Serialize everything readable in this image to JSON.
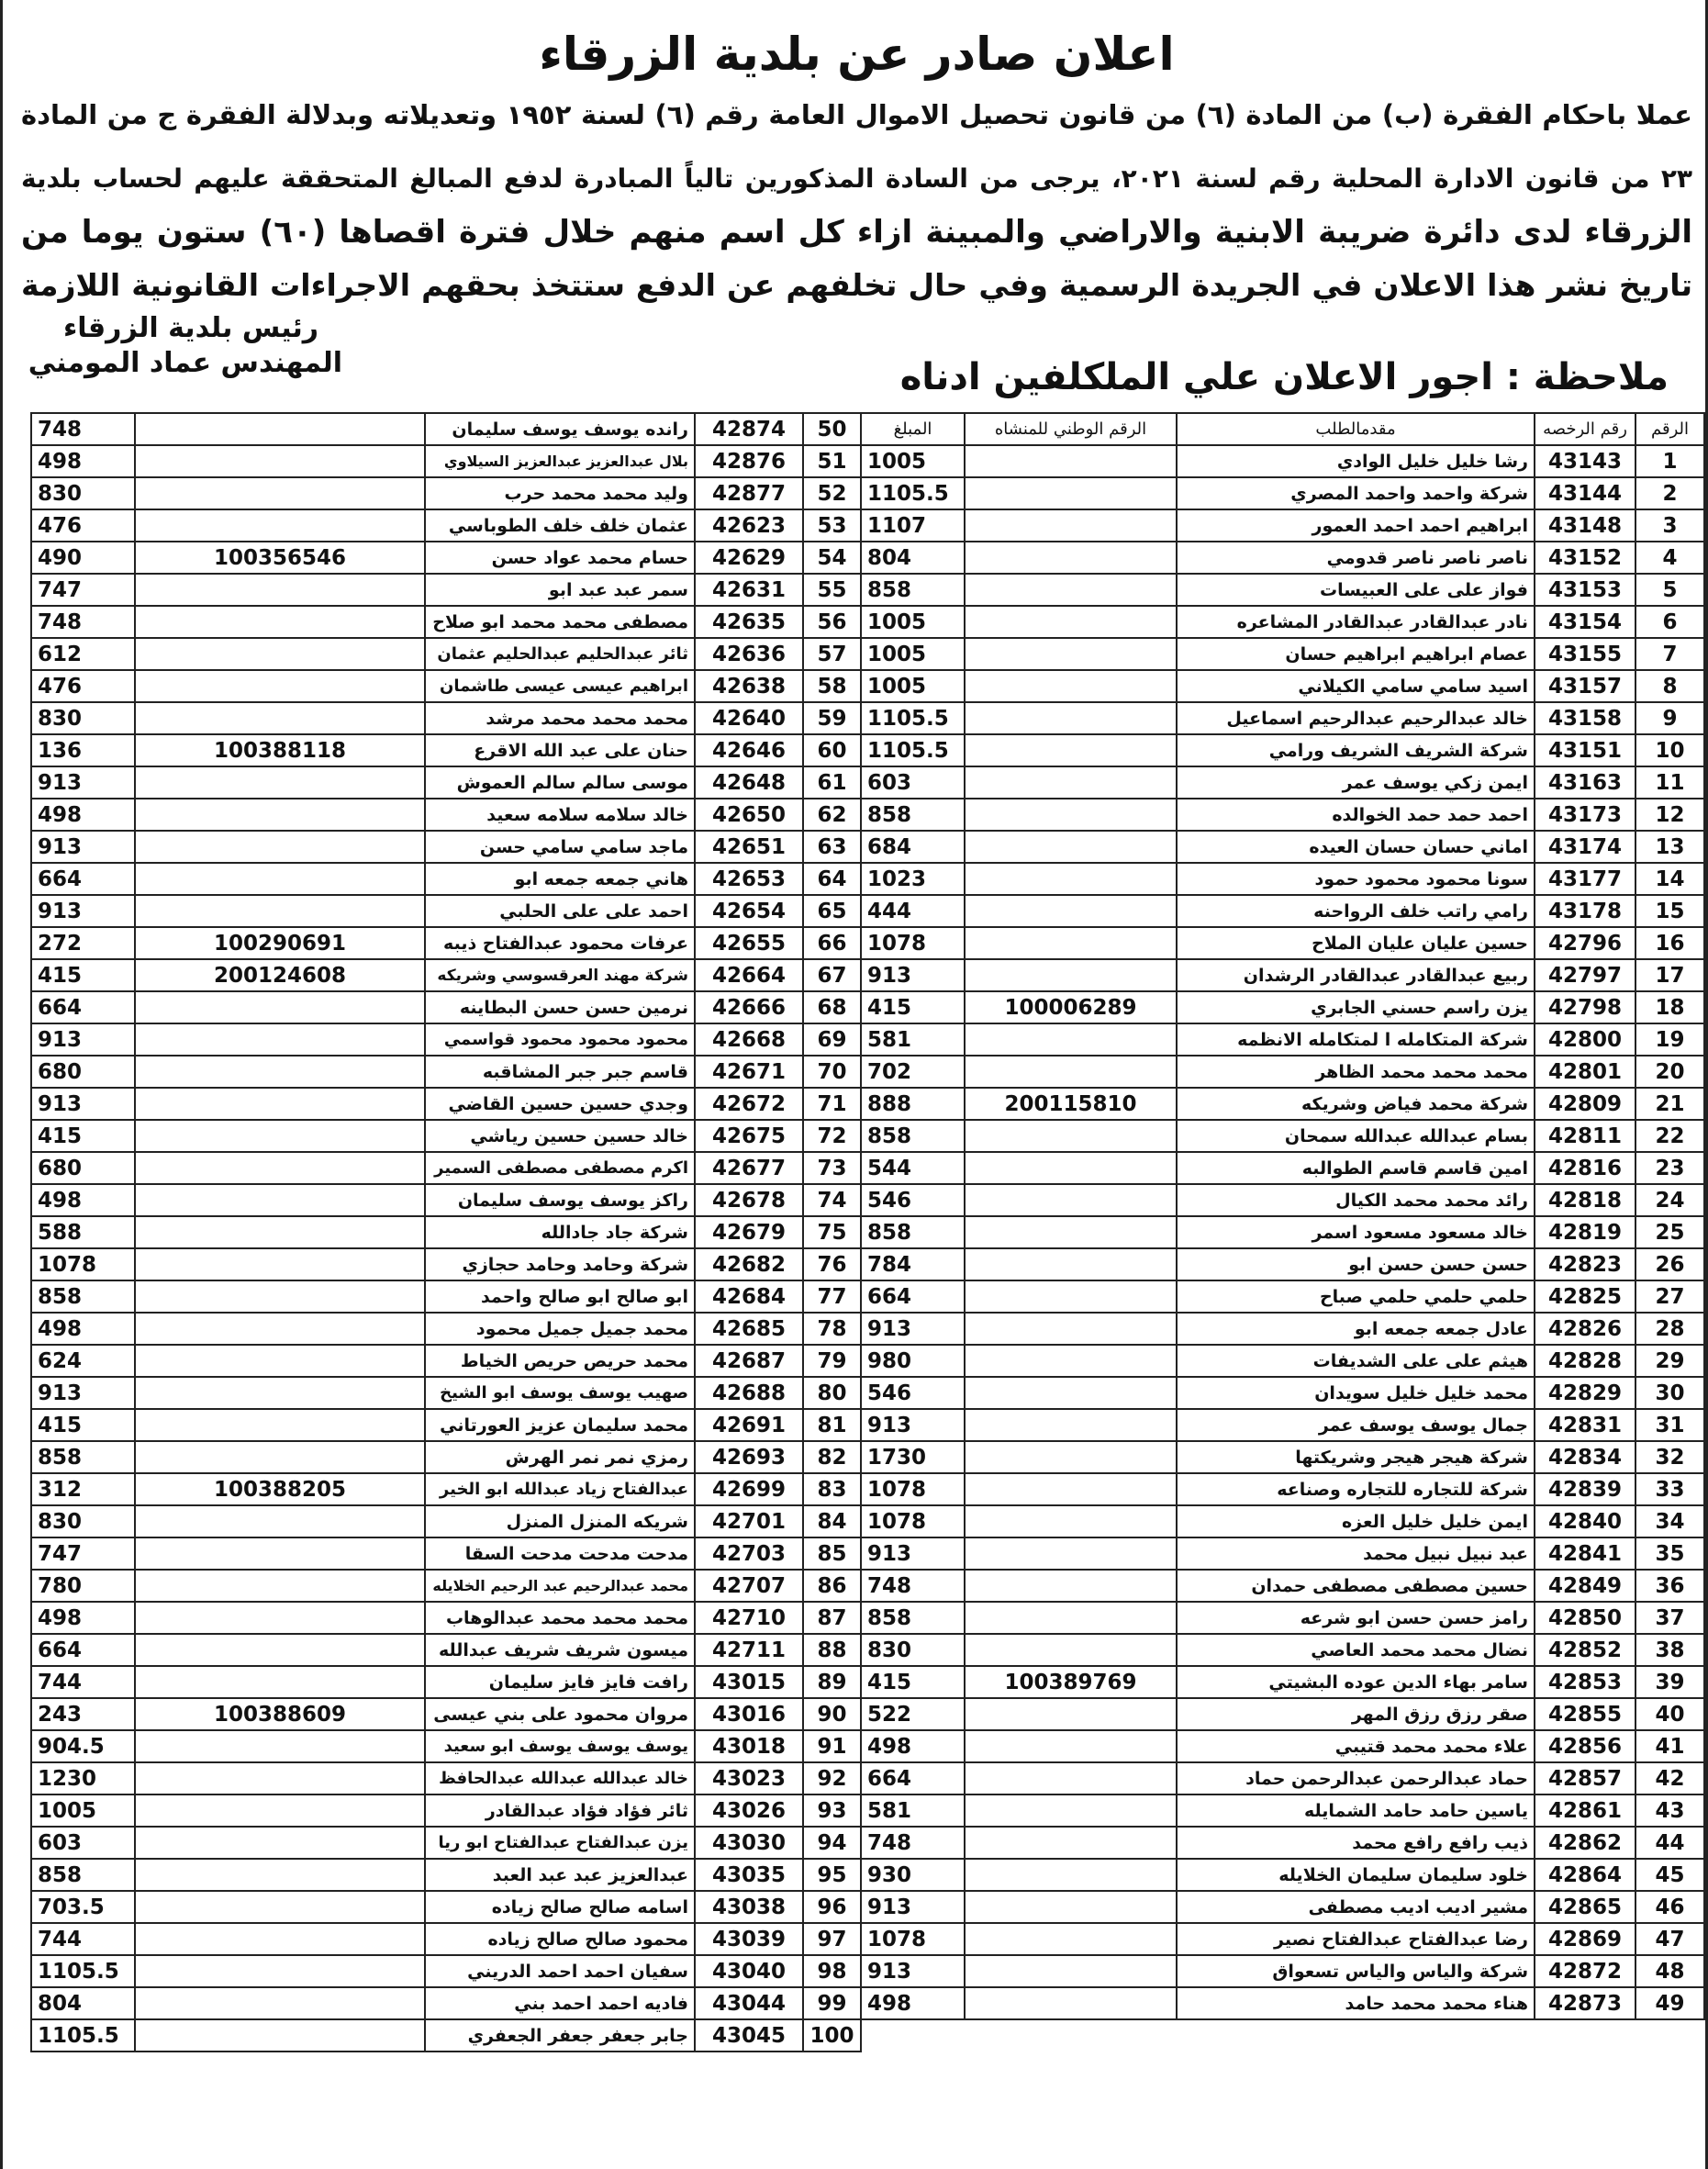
{
  "header": {
    "title": "اعلان صادر عن بلدية الزرقاء",
    "paragraph": [
      "عملا باحكام الفقرة (ب) من المادة (٦) من قانون تحصيل الاموال العامة رقم (٦) لسنة ١٩٥٢ وتعديلاته وبدلالة الفقرة ج من المادة",
      "٢٣ من قانون الادارة المحلية رقم لسنة ٢٠٢١، يرجى من السادة المذكورين تالياً المبادرة لدفع المبالغ المتحققة عليهم لحساب بلدية",
      "الزرقاء لدى دائرة ضريبة الابنية والاراضي والمبينة ازاء كل اسم منهم خلال فترة اقصاها (٦٠) ستون يوما من",
      "تاريخ نشر هذا الاعلان في الجريدة الرسمية وفي حال تخلفهم عن الدفع ستتخذ بحقهم الاجراءات القانونية اللازمة"
    ],
    "signature": [
      "رئيس بلدية الزرقاء",
      "المهندس عماد المومني"
    ],
    "note": "ملاحظة : اجور الاعلان علي الملكلفين ادناه"
  },
  "table": {
    "headers": [
      "الرقم",
      "رقم الرخصه",
      "مقدمالطلب",
      "الرقم الوطني للمنشاه",
      "المبلغ"
    ],
    "rows": [
      {
        "no": 1,
        "license": 43143,
        "name": "رشا خليل خليل الوادي",
        "amount": 1005
      },
      {
        "no": 2,
        "license": 43144,
        "name": "شركة واحمد واحمد المصري",
        "amount": 1105.5
      },
      {
        "no": 3,
        "license": 43148,
        "name": "ابراهيم احمد احمد العمور",
        "amount": 1107
      },
      {
        "no": 4,
        "license": 43152,
        "name": "ناصر ناصر ناصر قدومي",
        "amount": 804
      },
      {
        "no": 5,
        "license": 43153,
        "name": "فواز على على العبيسات",
        "amount": 858
      },
      {
        "no": 6,
        "license": 43154,
        "name": "نادر عبدالقادر عبدالقادر المشاعره",
        "amount": 1005
      },
      {
        "no": 7,
        "license": 43155,
        "name": "عصام ابراهيم ابراهيم حسان",
        "amount": 1005
      },
      {
        "no": 8,
        "license": 43157,
        "name": "اسيد سامي سامي الكيلاني",
        "amount": 1005
      },
      {
        "no": 9,
        "license": 43158,
        "name": "خالد عبدالرحيم عبدالرحيم اسماعيل",
        "amount": 1105.5
      },
      {
        "no": 10,
        "license": 43151,
        "name": "شركة الشريف الشريف ورامي",
        "amount": 1105.5
      },
      {
        "no": 11,
        "license": 43163,
        "name": "ايمن زكي يوسف عمر",
        "amount": 603
      },
      {
        "no": 12,
        "license": 43173,
        "name": "احمد حمد حمد الخوالده",
        "amount": 858
      },
      {
        "no": 13,
        "license": 43174,
        "name": "اماني حسان حسان العيده",
        "amount": 684
      },
      {
        "no": 14,
        "license": 43177,
        "name": "سونا محمود محمود حمود",
        "amount": 1023
      },
      {
        "no": 15,
        "license": 43178,
        "name": "رامي راتب خلف الرواحنه",
        "amount": 444
      },
      {
        "no": 16,
        "license": 42796,
        "name": "حسين عليان عليان الملاح",
        "amount": 1078
      },
      {
        "no": 17,
        "license": 42797,
        "name": "ربيع عبدالقادر عبدالقادر الرشدان",
        "amount": 913
      },
      {
        "no": 18,
        "license": 42798,
        "name": "يزن راسم حسني الجابري",
        "national_id": 100006289,
        "amount": 415
      },
      {
        "no": 19,
        "license": 42800,
        "name": "شركة المتكامله ا لمتكامله الانظمه",
        "amount": 581
      },
      {
        "no": 20,
        "license": 42801,
        "name": "محمد محمد محمد الظاهر",
        "amount": 702
      },
      {
        "no": 21,
        "license": 42809,
        "name": "شركة محمد فياض وشريكه",
        "national_id": 200115810,
        "amount": 888
      },
      {
        "no": 22,
        "license": 42811,
        "name": "بسام عبدالله عبدالله سمحان",
        "amount": 858
      },
      {
        "no": 23,
        "license": 42816,
        "name": "امين قاسم قاسم الطوالبه",
        "amount": 544
      },
      {
        "no": 24,
        "license": 42818,
        "name": "رائد محمد محمد الكيال",
        "amount": 546
      },
      {
        "no": 25,
        "license": 42819,
        "name": "خالد مسعود مسعود اسمر",
        "amount": 858
      },
      {
        "no": 26,
        "license": 42823,
        "name": "حسن حسن حسن ابو",
        "amount": 784
      },
      {
        "no": 27,
        "license": 42825,
        "name": "حلمي حلمي حلمي صباح",
        "amount": 664
      },
      {
        "no": 28,
        "license": 42826,
        "name": "عادل جمعه جمعه ابو",
        "amount": 913
      },
      {
        "no": 29,
        "license": 42828,
        "name": "هيثم على على الشديفات",
        "amount": 980
      },
      {
        "no": 30,
        "license": 42829,
        "name": "محمد خليل خليل سويدان",
        "amount": 546
      },
      {
        "no": 31,
        "license": 42831,
        "name": "جمال يوسف يوسف عمر",
        "amount": 913
      },
      {
        "no": 32,
        "license": 42834,
        "name": "شركة هيجر هيجر وشريكتها",
        "amount": 1730
      },
      {
        "no": 33,
        "license": 42839,
        "name": "شركة للتجاره للتجاره وصناعه",
        "amount": 1078
      },
      {
        "no": 34,
        "license": 42840,
        "name": "ايمن خليل خليل العزه",
        "amount": 1078
      },
      {
        "no": 35,
        "license": 42841,
        "name": "عبد نبيل نبيل محمد",
        "amount": 913
      },
      {
        "no": 36,
        "license": 42849,
        "name": "حسين مصطفى مصطفى حمدان",
        "amount": 748
      },
      {
        "no": 37,
        "license": 42850,
        "name": "رامز حسن حسن ابو شرعه",
        "amount": 858
      },
      {
        "no": 38,
        "license": 42852,
        "name": "نضال محمد محمد العاصي",
        "amount": 830
      },
      {
        "no": 39,
        "license": 42853,
        "name": "سامر بهاء الدين عوده البشيتي",
        "national_id": 100389769,
        "amount": 415
      },
      {
        "no": 40,
        "license": 42855,
        "name": "صقر رزق رزق المهر",
        "amount": 522
      },
      {
        "no": 41,
        "license": 42856,
        "name": "علاء محمد محمد قتيبي",
        "amount": 498
      },
      {
        "no": 42,
        "license": 42857,
        "name": "حماد عبدالرحمن عبدالرحمن حماد",
        "amount": 664
      },
      {
        "no": 43,
        "license": 42861,
        "name": "ياسين حامد حامد الشمايله",
        "amount": 581
      },
      {
        "no": 44,
        "license": 42862,
        "name": "ذيب رافع رافع محمد",
        "amount": 748
      },
      {
        "no": 45,
        "license": 42864,
        "name": "خلود سليمان سليمان الخلايله",
        "amount": 930
      },
      {
        "no": 46,
        "license": 42865,
        "name": "مشير اديب اديب مصطفى",
        "amount": 913
      },
      {
        "no": 47,
        "license": 42869,
        "name": "رضا عبدالفتاح عبدالفتاح نصير",
        "amount": 1078
      },
      {
        "no": 48,
        "license": 42872,
        "name": "شركة والياس والياس تسعواق",
        "amount": 913
      },
      {
        "no": 49,
        "license": 42873,
        "name": "هناء محمد محمد حامد",
        "amount": 498
      },
      {
        "no": 50,
        "license": 42874,
        "name": "رانده يوسف يوسف سليمان",
        "amount": 748
      },
      {
        "no": 51,
        "license": 42876,
        "name": "بلال عبدالعزيز عبدالعزيز السيلاوي",
        "amount": 498
      },
      {
        "no": 52,
        "license": 42877,
        "name": "وليد محمد محمد حرب",
        "amount": 830
      },
      {
        "no": 53,
        "license": 42623,
        "name": "عثمان خلف خلف الطوباسي",
        "amount": 476
      },
      {
        "no": 54,
        "license": 42629,
        "name": "حسام محمد عواد حسن",
        "national_id": 100356546,
        "amount": 490
      },
      {
        "no": 55,
        "license": 42631,
        "name": "سمر عبد عبد ابو",
        "amount": 747
      },
      {
        "no": 56,
        "license": 42635,
        "name": "مصطفى محمد محمد ابو صلاح",
        "amount": 748
      },
      {
        "no": 57,
        "license": 42636,
        "name": "ثائر عبدالحليم عبدالحليم عثمان",
        "amount": 612
      },
      {
        "no": 58,
        "license": 42638,
        "name": "ابراهيم عيسى عيسى طاشمان",
        "amount": 476
      },
      {
        "no": 59,
        "license": 42640,
        "name": "محمد محمد محمد مرشد",
        "amount": 830
      },
      {
        "no": 60,
        "license": 42646,
        "name": "حنان على عبد الله الاقرع",
        "national_id": 100388118,
        "amount": 136
      },
      {
        "no": 61,
        "license": 42648,
        "name": "موسى سالم سالم العموش",
        "amount": 913
      },
      {
        "no": 62,
        "license": 42650,
        "name": "خالد سلامه سلامه سعيد",
        "amount": 498
      },
      {
        "no": 63,
        "license": 42651,
        "name": "ماجد سامي سامي حسن",
        "amount": 913
      },
      {
        "no": 64,
        "license": 42653,
        "name": "هاني جمعه جمعه ابو",
        "amount": 664
      },
      {
        "no": 65,
        "license": 42654,
        "name": "احمد على على الحلبي",
        "amount": 913
      },
      {
        "no": 66,
        "license": 42655,
        "name": "عرفات محمود عبدالفتاح ذيبه",
        "national_id": 100290691,
        "amount": 272
      },
      {
        "no": 67,
        "license": 42664,
        "name": "شركة مهند العرقسوسي وشريكه",
        "national_id": 200124608,
        "amount": 415
      },
      {
        "no": 68,
        "license": 42666,
        "name": "نرمين حسن حسن البطاينه",
        "amount": 664
      },
      {
        "no": 69,
        "license": 42668,
        "name": "محمود محمود محمود قواسمي",
        "amount": 913
      },
      {
        "no": 70,
        "license": 42671,
        "name": "قاسم جبر جبر المشاقبه",
        "amount": 680
      },
      {
        "no": 71,
        "license": 42672,
        "name": "وجدي حسين حسين القاضي",
        "amount": 913
      },
      {
        "no": 72,
        "license": 42675,
        "name": "خالد حسين حسين رياشي",
        "amount": 415
      },
      {
        "no": 73,
        "license": 42677,
        "name": "اكرم مصطفى مصطفى السمير",
        "amount": 680
      },
      {
        "no": 74,
        "license": 42678,
        "name": "راكز يوسف يوسف سليمان",
        "amount": 498
      },
      {
        "no": 75,
        "license": 42679,
        "name": "شركة جاد جادالله",
        "amount": 588
      },
      {
        "no": 76,
        "license": 42682,
        "name": "شركة وحامد وحامد حجازي",
        "amount": 1078
      },
      {
        "no": 77,
        "license": 42684,
        "name": "ابو صالح ابو صالح واحمد",
        "amount": 858
      },
      {
        "no": 78,
        "license": 42685,
        "name": "محمد جميل جميل محمود",
        "amount": 498
      },
      {
        "no": 79,
        "license": 42687,
        "name": "محمد حريص حريص الخياط",
        "amount": 624
      },
      {
        "no": 80,
        "license": 42688,
        "name": "صهيب يوسف يوسف ابو الشيخ",
        "amount": 913
      },
      {
        "no": 81,
        "license": 42691,
        "name": "محمد سليمان عزيز العورتاني",
        "amount": 415
      },
      {
        "no": 82,
        "license": 42693,
        "name": "رمزي نمر نمر الهرش",
        "amount": 858
      },
      {
        "no": 83,
        "license": 42699,
        "name": "عبدالفتاح زياد عبدالله ابو الخير",
        "national_id": 100388205,
        "amount": 312
      },
      {
        "no": 84,
        "license": 42701,
        "name": "شريكه المنزل المنزل",
        "amount": 830
      },
      {
        "no": 85,
        "license": 42703,
        "name": "مدحت مدحت مدحت السقا",
        "amount": 747
      },
      {
        "no": 86,
        "license": 42707,
        "name": "محمد عبدالرحيم عبد الرحيم الخلايله",
        "amount": 780
      },
      {
        "no": 87,
        "license": 42710,
        "name": "محمد محمد محمد عبدالوهاب",
        "amount": 498
      },
      {
        "no": 88,
        "license": 42711,
        "name": "ميسون شريف شريف عبدالله",
        "amount": 664
      },
      {
        "no": 89,
        "license": 43015,
        "name": "رافت فايز فايز سليمان",
        "amount": 744
      },
      {
        "no": 90,
        "license": 43016,
        "name": "مروان محمود على بني عيسى",
        "national_id": 100388609,
        "amount": 243
      },
      {
        "no": 91,
        "license": 43018,
        "name": "يوسف يوسف يوسف ابو سعيد",
        "amount": 904.5
      },
      {
        "no": 92,
        "license": 43023,
        "name": "خالد عبدالله عبدالله عبدالحافظ",
        "amount": 1230
      },
      {
        "no": 93,
        "license": 43026,
        "name": "ثائر فؤاد فؤاد عبدالقادر",
        "amount": 1005
      },
      {
        "no": 94,
        "license": 43030,
        "name": "يزن عبدالفتاح عبدالفتاح ابو ريا",
        "amount": 603
      },
      {
        "no": 95,
        "license": 43035,
        "name": "عبدالعزيز عبد عبد العبد",
        "amount": 858
      },
      {
        "no": 96,
        "license": 43038,
        "name": "اسامه صالح صالح زياده",
        "amount": 703.5
      },
      {
        "no": 97,
        "license": 43039,
        "name": "محمود صالح صالح زياده",
        "amount": 744
      },
      {
        "no": 98,
        "license": 43040,
        "name": "سفيان احمد احمد الدريني",
        "amount": 1105.5
      },
      {
        "no": 99,
        "license": 43044,
        "name": "فاديه احمد احمد بني",
        "amount": 804
      },
      {
        "no": 100,
        "license": 43045,
        "name": "جابر جعفر جعفر الجعفري",
        "amount": 1105.5
      }
    ]
  }
}
